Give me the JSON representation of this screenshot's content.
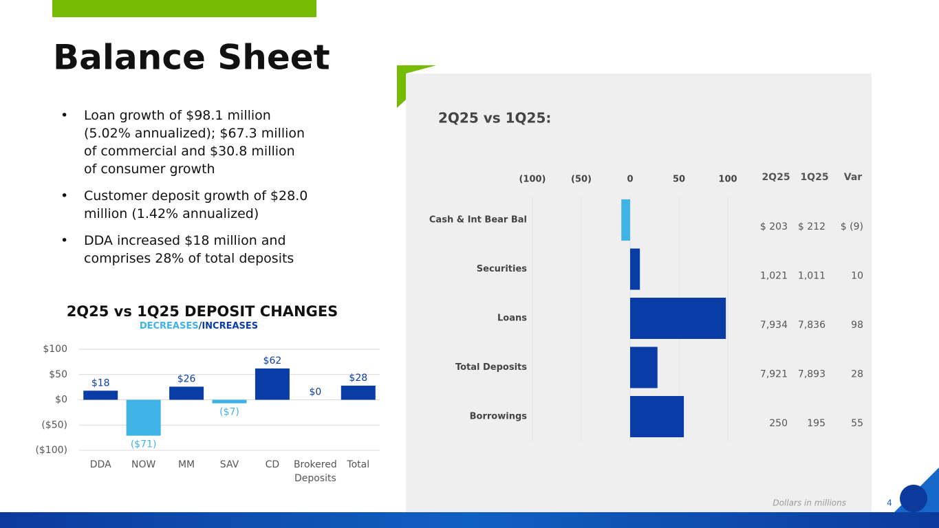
{
  "header": {
    "title": "Balance Sheet"
  },
  "bullets": [
    "Loan growth of $98.1 million (5.02% annualized); $67.3 million of commercial and $30.8 million of consumer growth",
    "Customer deposit growth of $28.0 million (1.42% annualized)",
    "DDA increased $18 million and comprises 28% of total deposits"
  ],
  "chart_data": [
    {
      "type": "bar",
      "title": "2Q25 vs 1Q25 DEPOSIT CHANGES",
      "subtitle": [
        "DECREASES",
        "/INCREASES"
      ],
      "categories": [
        "DDA",
        "NOW",
        "MM",
        "SAV",
        "CD",
        "Brokered Deposits",
        "Total"
      ],
      "values": [
        18,
        -71,
        26,
        -7,
        62,
        0,
        28
      ],
      "value_labels": [
        "$18",
        "($71)",
        "$26",
        "($7)",
        "$62",
        "$0",
        "$28"
      ],
      "increase_color": "#0a3ca6",
      "decrease_color": "#3fb3e5",
      "ylim": [
        -100,
        100
      ],
      "yticks": [
        {
          "value": -100,
          "label": "($100)"
        },
        {
          "value": -50,
          "label": "($50)"
        },
        {
          "value": 0,
          "label": "$0"
        },
        {
          "value": 50,
          "label": "$50"
        },
        {
          "value": 100,
          "label": "$100"
        }
      ],
      "grid": true
    },
    {
      "type": "hbar",
      "title": "2Q25 vs 1Q25:",
      "categories": [
        "Cash & Int Bear Bal",
        "Securities",
        "Loans",
        "Total Deposits",
        "Borrowings"
      ],
      "values": [
        -9,
        10,
        98,
        28,
        55
      ],
      "value_labels": [
        "$ (9)",
        "10",
        "98",
        "28",
        "55"
      ],
      "increase_color": "#0a3ca6",
      "decrease_color": "#3fb3e5",
      "xlim": [
        -100,
        100
      ],
      "xticks": [
        {
          "value": -100,
          "label": "(100)"
        },
        {
          "value": -50,
          "label": "(50)"
        },
        0,
        50,
        100
      ],
      "grid": true,
      "table": {
        "columns": [
          "2Q25",
          "1Q25",
          "Var"
        ],
        "rows": [
          [
            "$ 203",
            "$ 212"
          ],
          [
            "1,021",
            "1,011"
          ],
          [
            "7,934",
            "7,836"
          ],
          [
            "7,921",
            "7,893"
          ],
          [
            "250",
            "195"
          ]
        ]
      }
    }
  ],
  "footer": {
    "note": "Dollars in millions",
    "page": "4"
  }
}
